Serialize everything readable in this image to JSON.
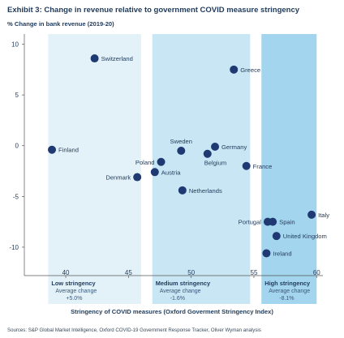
{
  "chart_data": {
    "type": "scatter",
    "title": "Exhibit 3: Change in revenue relative to government COVID measure stringency",
    "ylabel": "% Change in bank revenue (2019-20)",
    "xlabel": "Stringency of COVID measures (Oxford Goverment Stringency Index)",
    "source": "Sources: S&P Global Market Intelligence, Oxford COVID-19 Government Response Tracker, Oliver Wyman analysis",
    "xlim": [
      36.7,
      60.5
    ],
    "ylim": [
      -12.8,
      11.0
    ],
    "x_ticks": [
      40,
      45,
      50,
      55,
      60
    ],
    "x_tick_labels": [
      "40",
      "45",
      "50",
      "55",
      "60"
    ],
    "y_ticks": [
      10,
      5,
      0,
      -5,
      -10
    ],
    "y_tick_labels": [
      "10",
      "5",
      "0",
      "-5",
      "-10"
    ],
    "grid": false,
    "point_color": "#1f3a73",
    "bands": [
      {
        "label": "Low stringency",
        "sub": "Average change",
        "value": "+5.0%",
        "x0": 38.6,
        "x1": 46.0,
        "color": "#e3f2f9"
      },
      {
        "label": "Medium stringency",
        "sub": "Average change",
        "value": "-1.6%",
        "x0": 46.9,
        "x1": 54.7,
        "color": "#c9e6f4"
      },
      {
        "label": "High stringency",
        "sub": "Average change",
        "value": "-8.1%",
        "x0": 55.6,
        "x1": 60.0,
        "color": "#a4d5ee"
      }
    ],
    "points": [
      {
        "name": "Switzerland",
        "x": 42.3,
        "y": 8.6,
        "label_side": "right"
      },
      {
        "name": "Greece",
        "x": 53.4,
        "y": 7.5,
        "label_side": "right"
      },
      {
        "name": "Finland",
        "x": 38.9,
        "y": -0.4,
        "label_side": "right"
      },
      {
        "name": "Sweden",
        "x": 49.2,
        "y": -0.5,
        "label_side": "above"
      },
      {
        "name": "Germany",
        "x": 51.9,
        "y": -0.1,
        "label_side": "right"
      },
      {
        "name": "Belgium",
        "x": 51.3,
        "y": -0.8,
        "label_side": "below"
      },
      {
        "name": "Poland",
        "x": 47.6,
        "y": -1.6,
        "label_side": "left"
      },
      {
        "name": "France",
        "x": 54.4,
        "y": -2.0,
        "label_side": "right"
      },
      {
        "name": "Austria",
        "x": 47.1,
        "y": -2.6,
        "label_side": "right"
      },
      {
        "name": "Denmark",
        "x": 45.7,
        "y": -3.1,
        "label_side": "left"
      },
      {
        "name": "Netherlands",
        "x": 49.3,
        "y": -4.4,
        "label_side": "right"
      },
      {
        "name": "Italy",
        "x": 59.6,
        "y": -6.8,
        "label_side": "right"
      },
      {
        "name": "Portugal",
        "x": 56.1,
        "y": -7.5,
        "label_side": "left"
      },
      {
        "name": "Spain",
        "x": 56.5,
        "y": -7.5,
        "label_side": "right"
      },
      {
        "name": "United Kingdom",
        "x": 56.8,
        "y": -8.9,
        "label_side": "right"
      },
      {
        "name": "Ireland",
        "x": 56.0,
        "y": -10.6,
        "label_side": "right"
      }
    ]
  }
}
